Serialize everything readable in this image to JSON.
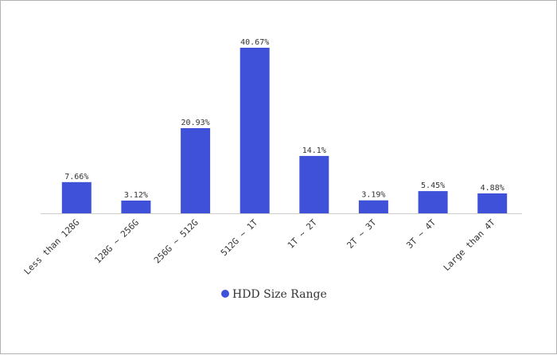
{
  "colors": {
    "bar": "#3F51D8",
    "axis": "#cccccc"
  },
  "chart_data": {
    "type": "bar",
    "title": "",
    "xlabel": "",
    "ylabel": "",
    "categories": [
      "Less than 128G",
      "128G ~ 256G",
      "256G ~ 512G",
      "512G ~ 1T",
      "1T ~ 2T",
      "2T ~ 3T",
      "3T ~ 4T",
      "Large than 4T"
    ],
    "series": [
      {
        "name": "HDD Size Range",
        "values": [
          7.66,
          3.12,
          20.93,
          40.67,
          14.1,
          3.19,
          5.45,
          4.88
        ],
        "labels": [
          "7.66%",
          "3.12%",
          "20.93%",
          "40.67%",
          "14.1%",
          "3.19%",
          "5.45%",
          "4.88%"
        ]
      }
    ],
    "ylim": [
      0,
      40.67
    ],
    "grid": false,
    "legend": "bottom-center"
  }
}
